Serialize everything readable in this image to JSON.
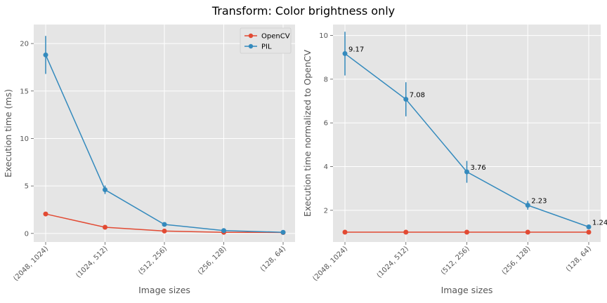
{
  "figure": {
    "suptitle": "Transform: Color brightness only"
  },
  "chart_data": [
    {
      "type": "line",
      "categories": [
        "(2048, 1024)",
        "(1024, 512)",
        "(512, 256)",
        "(256, 128)",
        "(128, 64)"
      ],
      "xlabel": "Image sizes",
      "ylabel": "Execution time (ms)",
      "ylim": [
        -0.9,
        22
      ],
      "yticks": [
        0,
        5,
        10,
        15,
        20
      ],
      "grid": true,
      "legend": "top-right",
      "series": [
        {
          "name": "OpenCV",
          "color": "#E24A33",
          "values": [
            2.05,
            0.65,
            0.25,
            0.12,
            0.1
          ],
          "errors": [
            0.1,
            0.05,
            0.03,
            0.02,
            0.02
          ]
        },
        {
          "name": "PIL",
          "color": "#348ABD",
          "values": [
            18.8,
            4.6,
            0.95,
            0.3,
            0.12
          ],
          "errors": [
            2.0,
            0.45,
            0.1,
            0.05,
            0.02
          ]
        }
      ]
    },
    {
      "type": "line",
      "categories": [
        "(2048, 1024)",
        "(1024, 512)",
        "(512, 256)",
        "(256, 128)",
        "(128, 64)"
      ],
      "xlabel": "Image sizes",
      "ylabel": "Execution time normalized to OpenCV",
      "ylim": [
        0.55,
        10.5
      ],
      "yticks": [
        2,
        4,
        6,
        8,
        10
      ],
      "grid": true,
      "series": [
        {
          "color": "#E24A33",
          "values": [
            1,
            1,
            1,
            1,
            1
          ],
          "errors": [
            0,
            0,
            0,
            0,
            0
          ]
        },
        {
          "color": "#348ABD",
          "values": [
            9.17,
            7.08,
            3.76,
            2.23,
            1.24
          ],
          "errors": [
            1.0,
            0.78,
            0.5,
            0.2,
            0.08
          ]
        }
      ],
      "annotations": [
        "9.17",
        "7.08",
        "3.76",
        "2.23",
        "1.24"
      ]
    }
  ]
}
